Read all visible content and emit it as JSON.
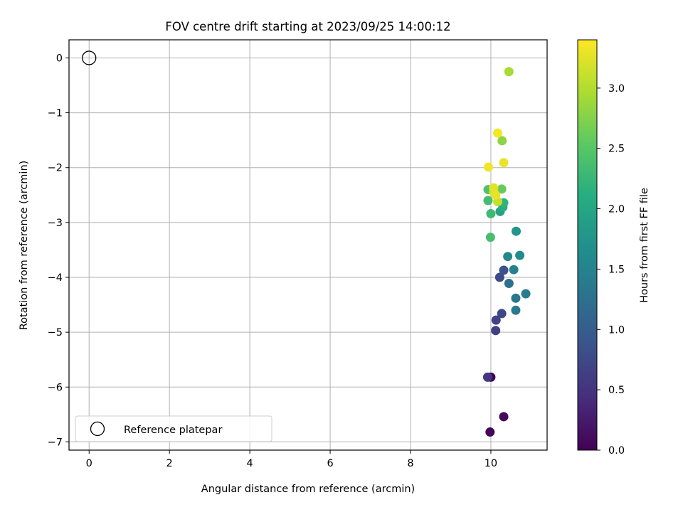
{
  "chart_data": {
    "type": "scatter",
    "title": "FOV centre drift starting at 2023/09/25 14:00:12",
    "xlabel": "Angular distance from reference (arcmin)",
    "ylabel": "Rotation from reference (arcmin)",
    "xlim": [
      -0.5,
      11.4
    ],
    "ylim": [
      -7.15,
      0.33
    ],
    "x_ticks": [
      "0",
      "2",
      "4",
      "6",
      "8",
      "10"
    ],
    "y_ticks": [
      "0",
      "−1",
      "−2",
      "−3",
      "−4",
      "−5",
      "−6",
      "−7"
    ],
    "grid": true,
    "legend": {
      "placement": "lower-left",
      "label": "Reference platepar"
    },
    "reference_point": {
      "x": 0,
      "y": 0,
      "marker": "open-circle"
    },
    "colorbar": {
      "label": "Hours from first FF file",
      "colormap": "viridis",
      "min": 0.0,
      "max": 3.4,
      "ticks": [
        "0.0",
        "0.5",
        "1.0",
        "1.5",
        "2.0",
        "2.5",
        "3.0"
      ]
    },
    "points": [
      {
        "x": 10.0,
        "y": -5.82,
        "t": 0.02
      },
      {
        "x": 9.98,
        "y": -6.82,
        "t": 0.05
      },
      {
        "x": 10.32,
        "y": -6.54,
        "t": 0.08
      },
      {
        "x": 9.92,
        "y": -5.82,
        "t": 0.55
      },
      {
        "x": 10.12,
        "y": -4.97,
        "t": 0.62
      },
      {
        "x": 10.13,
        "y": -4.78,
        "t": 0.68
      },
      {
        "x": 10.27,
        "y": -4.66,
        "t": 0.72
      },
      {
        "x": 10.22,
        "y": -4.0,
        "t": 0.78
      },
      {
        "x": 10.32,
        "y": -3.87,
        "t": 0.85
      },
      {
        "x": 10.45,
        "y": -4.11,
        "t": 1.25
      },
      {
        "x": 10.62,
        "y": -4.38,
        "t": 1.32
      },
      {
        "x": 10.62,
        "y": -4.6,
        "t": 1.38
      },
      {
        "x": 10.87,
        "y": -4.3,
        "t": 1.42
      },
      {
        "x": 10.57,
        "y": -3.86,
        "t": 1.48
      },
      {
        "x": 10.42,
        "y": -3.62,
        "t": 1.58
      },
      {
        "x": 10.72,
        "y": -3.6,
        "t": 1.62
      },
      {
        "x": 10.63,
        "y": -3.16,
        "t": 1.75
      },
      {
        "x": 10.23,
        "y": -2.8,
        "t": 1.95
      },
      {
        "x": 10.3,
        "y": -2.72,
        "t": 2.1
      },
      {
        "x": 10.32,
        "y": -2.64,
        "t": 2.2
      },
      {
        "x": 10.0,
        "y": -2.84,
        "t": 2.3
      },
      {
        "x": 9.99,
        "y": -3.27,
        "t": 2.38
      },
      {
        "x": 9.93,
        "y": -2.6,
        "t": 2.35
      },
      {
        "x": 9.93,
        "y": -2.4,
        "t": 2.45
      },
      {
        "x": 10.27,
        "y": -2.39,
        "t": 2.6
      },
      {
        "x": 10.28,
        "y": -1.51,
        "t": 2.8
      },
      {
        "x": 10.45,
        "y": -0.25,
        "t": 2.95
      },
      {
        "x": 10.17,
        "y": -2.62,
        "t": 3.1
      },
      {
        "x": 10.07,
        "y": -2.45,
        "t": 3.2
      },
      {
        "x": 10.07,
        "y": -2.37,
        "t": 3.25
      },
      {
        "x": 10.12,
        "y": -2.5,
        "t": 3.28
      },
      {
        "x": 10.32,
        "y": -1.91,
        "t": 3.3
      },
      {
        "x": 9.94,
        "y": -1.99,
        "t": 3.33
      },
      {
        "x": 10.17,
        "y": -1.37,
        "t": 3.36
      }
    ]
  }
}
